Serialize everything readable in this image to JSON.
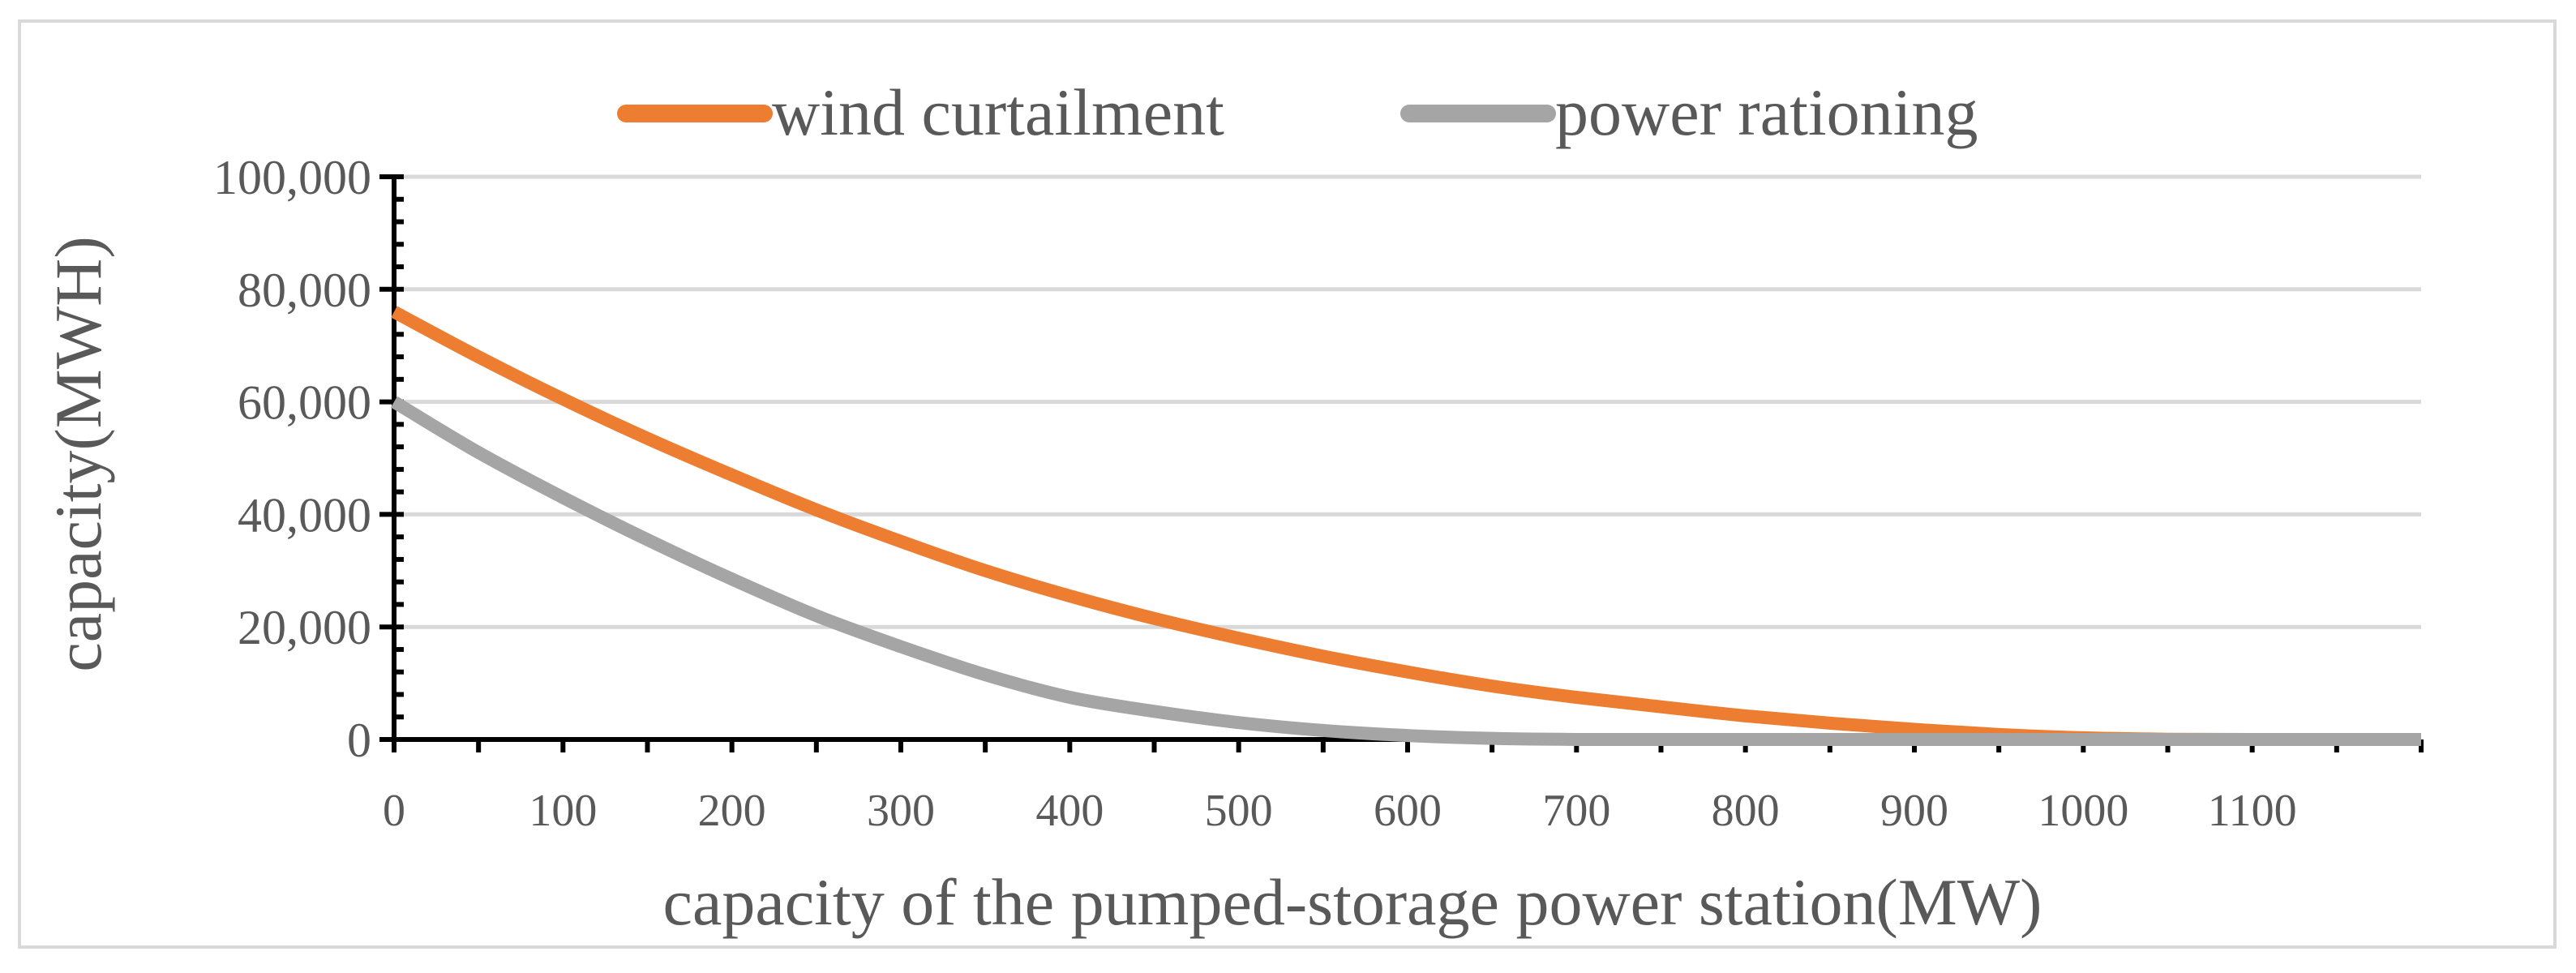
{
  "chart_data": {
    "type": "line",
    "title": "",
    "xlabel": "capacity of the pumped-storage power station(MW)",
    "ylabel": "capacity(MWH)",
    "xlim": [
      0,
      1200
    ],
    "ylim": [
      0,
      100000
    ],
    "x_ticks": [
      0,
      100,
      200,
      300,
      400,
      500,
      600,
      700,
      800,
      900,
      1000,
      1100
    ],
    "x_tick_labels": [
      "0",
      "100",
      "200",
      "300",
      "400",
      "500",
      "600",
      "700",
      "800",
      "900",
      "1000",
      "1100"
    ],
    "y_ticks": [
      0,
      20000,
      40000,
      60000,
      80000,
      100000
    ],
    "y_tick_labels": [
      "0",
      "20,000",
      "40,000",
      "60,000",
      "80,000",
      "100,000"
    ],
    "grid": true,
    "legend_position": "top",
    "x": [
      0,
      50,
      100,
      150,
      200,
      250,
      300,
      350,
      400,
      450,
      500,
      550,
      600,
      650,
      700,
      750,
      800,
      850,
      900,
      950,
      1000,
      1050,
      1100,
      1150,
      1200
    ],
    "series": [
      {
        "name": "wind curtailment",
        "color": "#ed7d31",
        "values": [
          76000,
          68000,
          60500,
          53500,
          47000,
          40800,
          35200,
          30000,
          25500,
          21500,
          18000,
          14800,
          12000,
          9500,
          7500,
          5800,
          4200,
          2900,
          1800,
          900,
          300,
          50,
          0,
          0,
          0
        ]
      },
      {
        "name": "power rationing",
        "color": "#a5a5a5",
        "values": [
          60000,
          51000,
          43000,
          35500,
          28500,
          22000,
          16500,
          11500,
          7500,
          5000,
          3000,
          1600,
          700,
          200,
          0,
          0,
          0,
          0,
          0,
          0,
          0,
          0,
          0,
          0,
          0
        ]
      }
    ]
  }
}
